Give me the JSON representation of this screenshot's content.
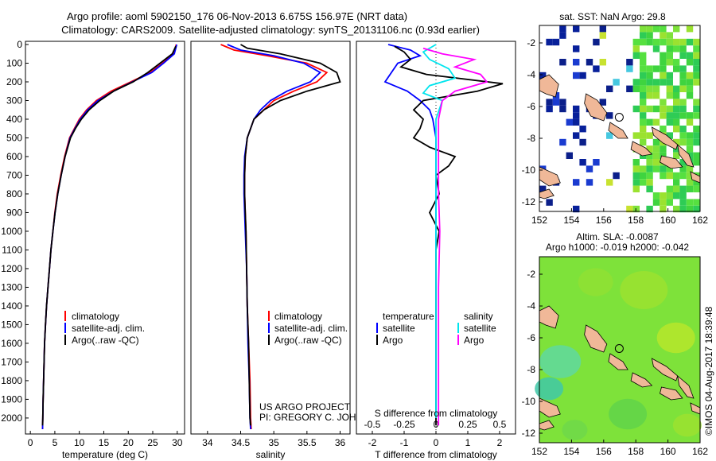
{
  "title_line1": "Argo profile: aoml 5902150_176 06-Nov-2013 6.675S 156.97E (NRT data)",
  "title_line2": "Climatology: CARS2009. Satellite-adjusted climatology: synTS_20131106.nc (0.93d earlier)",
  "colors": {
    "climatology": "#ff0000",
    "satellite": "#0000ff",
    "argo": "#000000",
    "argo_salinity_diff": "#ff00ff",
    "satellite_salinity_diff": "#00e5ee",
    "land": "#f0b898"
  },
  "depth_ticks": [
    0,
    100,
    200,
    300,
    400,
    500,
    600,
    700,
    800,
    900,
    1000,
    1100,
    1200,
    1300,
    1400,
    1500,
    1600,
    1700,
    1800,
    1900,
    2000
  ],
  "chart_data": [
    {
      "type": "line",
      "id": "temperature",
      "xlabel": "temperature (deg C)",
      "ylabel": "",
      "xlim": [
        -1,
        31.5
      ],
      "ylim": [
        0,
        2060
      ],
      "xticks": [
        0,
        5,
        10,
        15,
        20,
        25,
        30
      ],
      "series": [
        {
          "name": "climatology",
          "color": "#ff0000",
          "points": [
            [
              29.8,
              0
            ],
            [
              29.3,
              50
            ],
            [
              27,
              100
            ],
            [
              24.5,
              150
            ],
            [
              20.5,
              200
            ],
            [
              16.5,
              250
            ],
            [
              13.5,
              300
            ],
            [
              11.5,
              350
            ],
            [
              10,
              400
            ],
            [
              9,
              450
            ],
            [
              8,
              500
            ],
            [
              7,
              600
            ],
            [
              6.2,
              700
            ],
            [
              5.5,
              800
            ],
            [
              5,
              900
            ],
            [
              4.6,
              1000
            ],
            [
              4.2,
              1100
            ],
            [
              3.9,
              1200
            ],
            [
              3.6,
              1300
            ],
            [
              3.3,
              1400
            ],
            [
              3.1,
              1500
            ],
            [
              2.9,
              1600
            ],
            [
              2.8,
              1700
            ],
            [
              2.7,
              1800
            ],
            [
              2.6,
              1900
            ],
            [
              2.55,
              2000
            ],
            [
              2.5,
              2060
            ]
          ]
        },
        {
          "name": "satellite-adj. clim.",
          "color": "#0000ff",
          "points": [
            [
              29.9,
              0
            ],
            [
              29.4,
              50
            ],
            [
              27.2,
              100
            ],
            [
              24.8,
              150
            ],
            [
              20.8,
              200
            ],
            [
              17,
              250
            ],
            [
              13.8,
              300
            ],
            [
              11.7,
              350
            ],
            [
              10.2,
              400
            ],
            [
              9.1,
              450
            ],
            [
              8.1,
              500
            ],
            [
              7.1,
              600
            ],
            [
              6.3,
              700
            ],
            [
              5.6,
              800
            ],
            [
              5.05,
              900
            ],
            [
              4.6,
              1000
            ],
            [
              4.2,
              1100
            ],
            [
              3.9,
              1200
            ],
            [
              3.6,
              1300
            ],
            [
              3.3,
              1400
            ],
            [
              3.1,
              1500
            ],
            [
              2.9,
              1600
            ],
            [
              2.8,
              1700
            ],
            [
              2.7,
              1800
            ],
            [
              2.6,
              1900
            ],
            [
              2.55,
              2000
            ],
            [
              2.5,
              2060
            ]
          ]
        },
        {
          "name": "Argo(..raw -QC)",
          "color": "#000000",
          "points": [
            [
              29.7,
              10
            ],
            [
              29,
              50
            ],
            [
              26.5,
              100
            ],
            [
              24,
              150
            ],
            [
              21,
              200
            ],
            [
              17,
              250
            ],
            [
              14.2,
              300
            ],
            [
              12,
              350
            ],
            [
              10.4,
              400
            ],
            [
              9.2,
              450
            ],
            [
              8.2,
              500
            ],
            [
              7.1,
              600
            ],
            [
              6.3,
              700
            ],
            [
              5.6,
              800
            ],
            [
              5.05,
              900
            ],
            [
              4.6,
              1000
            ],
            [
              4.2,
              1100
            ],
            [
              3.9,
              1200
            ],
            [
              3.6,
              1300
            ],
            [
              3.3,
              1400
            ],
            [
              3.1,
              1500
            ],
            [
              2.9,
              1600
            ],
            [
              2.8,
              1700
            ],
            [
              2.7,
              1800
            ],
            [
              2.6,
              1900
            ],
            [
              2.55,
              2000
            ],
            [
              2.5,
              2040
            ]
          ]
        }
      ],
      "legend": [
        "climatology",
        "satellite-adj. clim.",
        "Argo(..raw -QC)"
      ]
    },
    {
      "type": "line",
      "id": "salinity",
      "xlabel": "salinity",
      "ylabel": "",
      "xlim": [
        33.75,
        36.15
      ],
      "ylim": [
        0,
        2060
      ],
      "xticks": [
        34,
        34.5,
        35,
        35.5,
        36
      ],
      "xticklabels": [
        "34",
        "34.5",
        "35",
        "35.5",
        "36"
      ],
      "series": [
        {
          "name": "climatology",
          "color": "#ff0000",
          "points": [
            [
              34.2,
              0
            ],
            [
              34.4,
              30
            ],
            [
              34.9,
              60
            ],
            [
              35.5,
              100
            ],
            [
              35.8,
              150
            ],
            [
              35.65,
              200
            ],
            [
              35.3,
              250
            ],
            [
              35,
              300
            ],
            [
              34.85,
              350
            ],
            [
              34.7,
              400
            ],
            [
              34.6,
              500
            ],
            [
              34.57,
              600
            ],
            [
              34.56,
              700
            ],
            [
              34.56,
              800
            ],
            [
              34.57,
              900
            ],
            [
              34.58,
              1000
            ],
            [
              34.59,
              1200
            ],
            [
              34.6,
              1400
            ],
            [
              34.62,
              1600
            ],
            [
              34.64,
              1800
            ],
            [
              34.65,
              2000
            ],
            [
              34.66,
              2060
            ]
          ]
        },
        {
          "name": "satellite-adj. clim.",
          "color": "#0000ff",
          "points": [
            [
              34.3,
              0
            ],
            [
              34.5,
              30
            ],
            [
              35,
              60
            ],
            [
              35.45,
              100
            ],
            [
              35.7,
              150
            ],
            [
              35.55,
              200
            ],
            [
              35.2,
              250
            ],
            [
              34.95,
              300
            ],
            [
              34.8,
              350
            ],
            [
              34.7,
              400
            ],
            [
              34.6,
              500
            ],
            [
              34.56,
              600
            ],
            [
              34.55,
              700
            ],
            [
              34.55,
              800
            ],
            [
              34.56,
              900
            ],
            [
              34.57,
              1000
            ],
            [
              34.59,
              1200
            ],
            [
              34.6,
              1400
            ],
            [
              34.61,
              1600
            ],
            [
              34.63,
              1800
            ],
            [
              34.64,
              2000
            ],
            [
              34.65,
              2060
            ]
          ]
        },
        {
          "name": "Argo(..raw -QC)",
          "color": "#000000",
          "points": [
            [
              34.5,
              0
            ],
            [
              34.6,
              20
            ],
            [
              35.1,
              50
            ],
            [
              35.7,
              100
            ],
            [
              35.95,
              150
            ],
            [
              36.0,
              200
            ],
            [
              35.5,
              250
            ],
            [
              35.1,
              300
            ],
            [
              34.85,
              350
            ],
            [
              34.7,
              400
            ],
            [
              34.6,
              500
            ],
            [
              34.57,
              600
            ],
            [
              34.56,
              700
            ],
            [
              34.56,
              800
            ],
            [
              34.57,
              900
            ],
            [
              34.58,
              1000
            ],
            [
              34.59,
              1200
            ],
            [
              34.6,
              1400
            ],
            [
              34.62,
              1600
            ],
            [
              34.63,
              1800
            ],
            [
              34.64,
              2000
            ],
            [
              34.65,
              2040
            ]
          ]
        }
      ],
      "legend": [
        "climatology",
        "satellite-adj. clim.",
        "Argo(..raw -QC)"
      ]
    },
    {
      "type": "line",
      "id": "difference",
      "xlabel": "T difference from climatology",
      "xlabel_top": "S difference from climatology",
      "ylabel": "",
      "xlim": [
        -2.5,
        2.5
      ],
      "ylim": [
        0,
        2060
      ],
      "xticks": [
        -2,
        -1,
        0,
        1,
        2
      ],
      "xticks_salinity": [
        -0.5,
        -0.25,
        0,
        0.25,
        0.5
      ],
      "xticklabels_salinity": [
        "-0.5",
        "-0.25",
        "0",
        "0.25",
        "0.5"
      ],
      "series": [
        {
          "name": "temperature satellite",
          "color": "#0000ff",
          "points": [
            [
              -1.5,
              0
            ],
            [
              -0.8,
              30
            ],
            [
              -0.5,
              60
            ],
            [
              -1.2,
              100
            ],
            [
              -1.4,
              150
            ],
            [
              -1.6,
              200
            ],
            [
              -0.9,
              250
            ],
            [
              -0.5,
              300
            ],
            [
              -0.2,
              350
            ],
            [
              -0.1,
              400
            ],
            [
              0,
              500
            ],
            [
              0,
              700
            ],
            [
              0,
              1000
            ],
            [
              0,
              1500
            ],
            [
              0,
              2000
            ]
          ]
        },
        {
          "name": "temperature Argo",
          "color": "#000000",
          "points": [
            [
              -1.3,
              10
            ],
            [
              -1.0,
              40
            ],
            [
              -0.8,
              80
            ],
            [
              -1.1,
              120
            ],
            [
              -0.3,
              160
            ],
            [
              2.1,
              210
            ],
            [
              1.3,
              250
            ],
            [
              -0.4,
              300
            ],
            [
              -0.7,
              350
            ],
            [
              -0.4,
              400
            ],
            [
              -0.5,
              450
            ],
            [
              -0.7,
              500
            ],
            [
              -0.2,
              550
            ],
            [
              0.6,
              600
            ],
            [
              0.4,
              650
            ],
            [
              0,
              700
            ],
            [
              0.1,
              800
            ],
            [
              -0.2,
              900
            ],
            [
              0.1,
              1000
            ],
            [
              0,
              1100
            ],
            [
              0,
              1300
            ],
            [
              0,
              1500
            ],
            [
              0,
              1800
            ],
            [
              0,
              2040
            ]
          ]
        },
        {
          "name": "salinity satellite",
          "color": "#00e5ee",
          "points": [
            [
              0.0,
              0
            ],
            [
              -0.1,
              40
            ],
            [
              -0.05,
              80
            ],
            [
              0.1,
              130
            ],
            [
              0.15,
              180
            ],
            [
              -0.05,
              220
            ],
            [
              -0.1,
              260
            ],
            [
              0.05,
              300
            ],
            [
              0.0,
              400
            ],
            [
              0.0,
              600
            ],
            [
              0.0,
              1000
            ],
            [
              0.0,
              1500
            ],
            [
              0.0,
              2000
            ]
          ]
        },
        {
          "name": "salinity Argo",
          "color": "#ff00ff",
          "points": [
            [
              -0.1,
              20
            ],
            [
              0.05,
              50
            ],
            [
              0.3,
              80
            ],
            [
              0.15,
              120
            ],
            [
              0.35,
              160
            ],
            [
              0.4,
              200
            ],
            [
              0.15,
              250
            ],
            [
              0.05,
              300
            ],
            [
              0.02,
              400
            ],
            [
              0.02,
              600
            ],
            [
              0.02,
              800
            ],
            [
              0.03,
              1000
            ],
            [
              0.02,
              1300
            ],
            [
              0.02,
              1600
            ],
            [
              0.02,
              2000
            ],
            [
              0.02,
              2040
            ]
          ]
        }
      ],
      "legend_headers": [
        "temperature",
        "salinity"
      ],
      "legend": [
        "satellite",
        "Argo",
        "satellite",
        "Argo"
      ]
    },
    {
      "type": "heatmap",
      "id": "sst_map",
      "title": "sat. SST: NaN Argo: 29.8",
      "xticks": [
        152,
        154,
        156,
        158,
        160,
        162
      ],
      "yticks": [
        -2,
        -4,
        -6,
        -8,
        -10,
        -12
      ],
      "xlim": [
        152,
        162
      ],
      "ylim": [
        -12.6,
        -0.9
      ],
      "argo_location": {
        "lon": 156.97,
        "lat": -6.675
      }
    },
    {
      "type": "heatmap",
      "id": "sla_map",
      "title_line1": "Altim. SLA: -0.0087",
      "title_line2": "Argo h1000: -0.019 h2000: -0.042",
      "xticks": [
        152,
        154,
        156,
        158,
        160,
        162
      ],
      "yticks": [
        -2,
        -4,
        -6,
        -8,
        -10,
        -12
      ],
      "xlim": [
        152,
        162
      ],
      "ylim": [
        -12.6,
        -0.9
      ],
      "argo_location": {
        "lon": 156.97,
        "lat": -6.675
      }
    }
  ],
  "credits": {
    "project": "US ARGO PROJECT",
    "pi": "PI: GREGORY C. JOHNSON",
    "stamp": "©IMOS 04-Aug-2017 18:39:48"
  }
}
